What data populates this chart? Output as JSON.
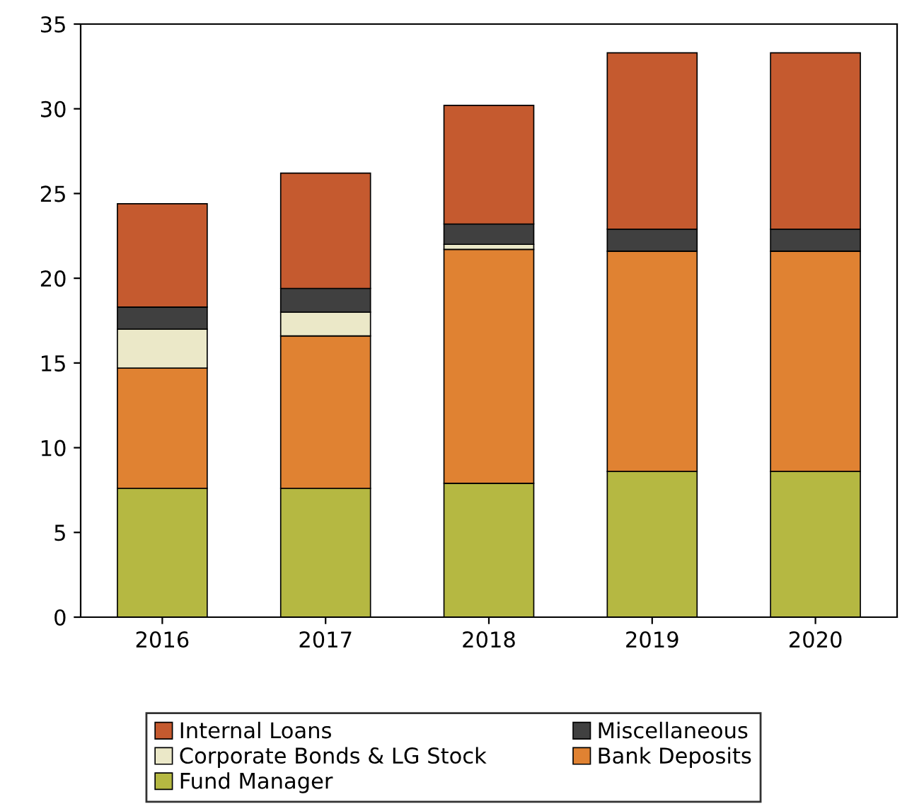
{
  "chart_data": {
    "type": "bar",
    "stacked": true,
    "categories": [
      "2016",
      "2017",
      "2018",
      "2019",
      "2020"
    ],
    "series": [
      {
        "name": "Fund Manager",
        "color": "#b5b842",
        "values": [
          7.6,
          7.6,
          7.9,
          8.6,
          8.6
        ]
      },
      {
        "name": "Bank Deposits",
        "color": "#e08232",
        "values": [
          7.1,
          9.0,
          13.8,
          13.0,
          13.0
        ]
      },
      {
        "name": "Corporate Bonds & LG Stock",
        "color": "#ebe8c8",
        "values": [
          2.3,
          1.4,
          0.3,
          null,
          null
        ]
      },
      {
        "name": "Miscellaneous",
        "color": "#404040",
        "values": [
          1.3,
          1.4,
          1.2,
          1.3,
          1.3
        ]
      },
      {
        "name": "Internal Loans",
        "color": "#c55a2f",
        "values": [
          6.1,
          6.8,
          7.0,
          10.4,
          10.4
        ]
      }
    ],
    "ylim": [
      0,
      35
    ],
    "yticks": [
      0,
      5,
      10,
      15,
      20,
      25,
      30,
      35
    ],
    "legend": "bottom"
  }
}
